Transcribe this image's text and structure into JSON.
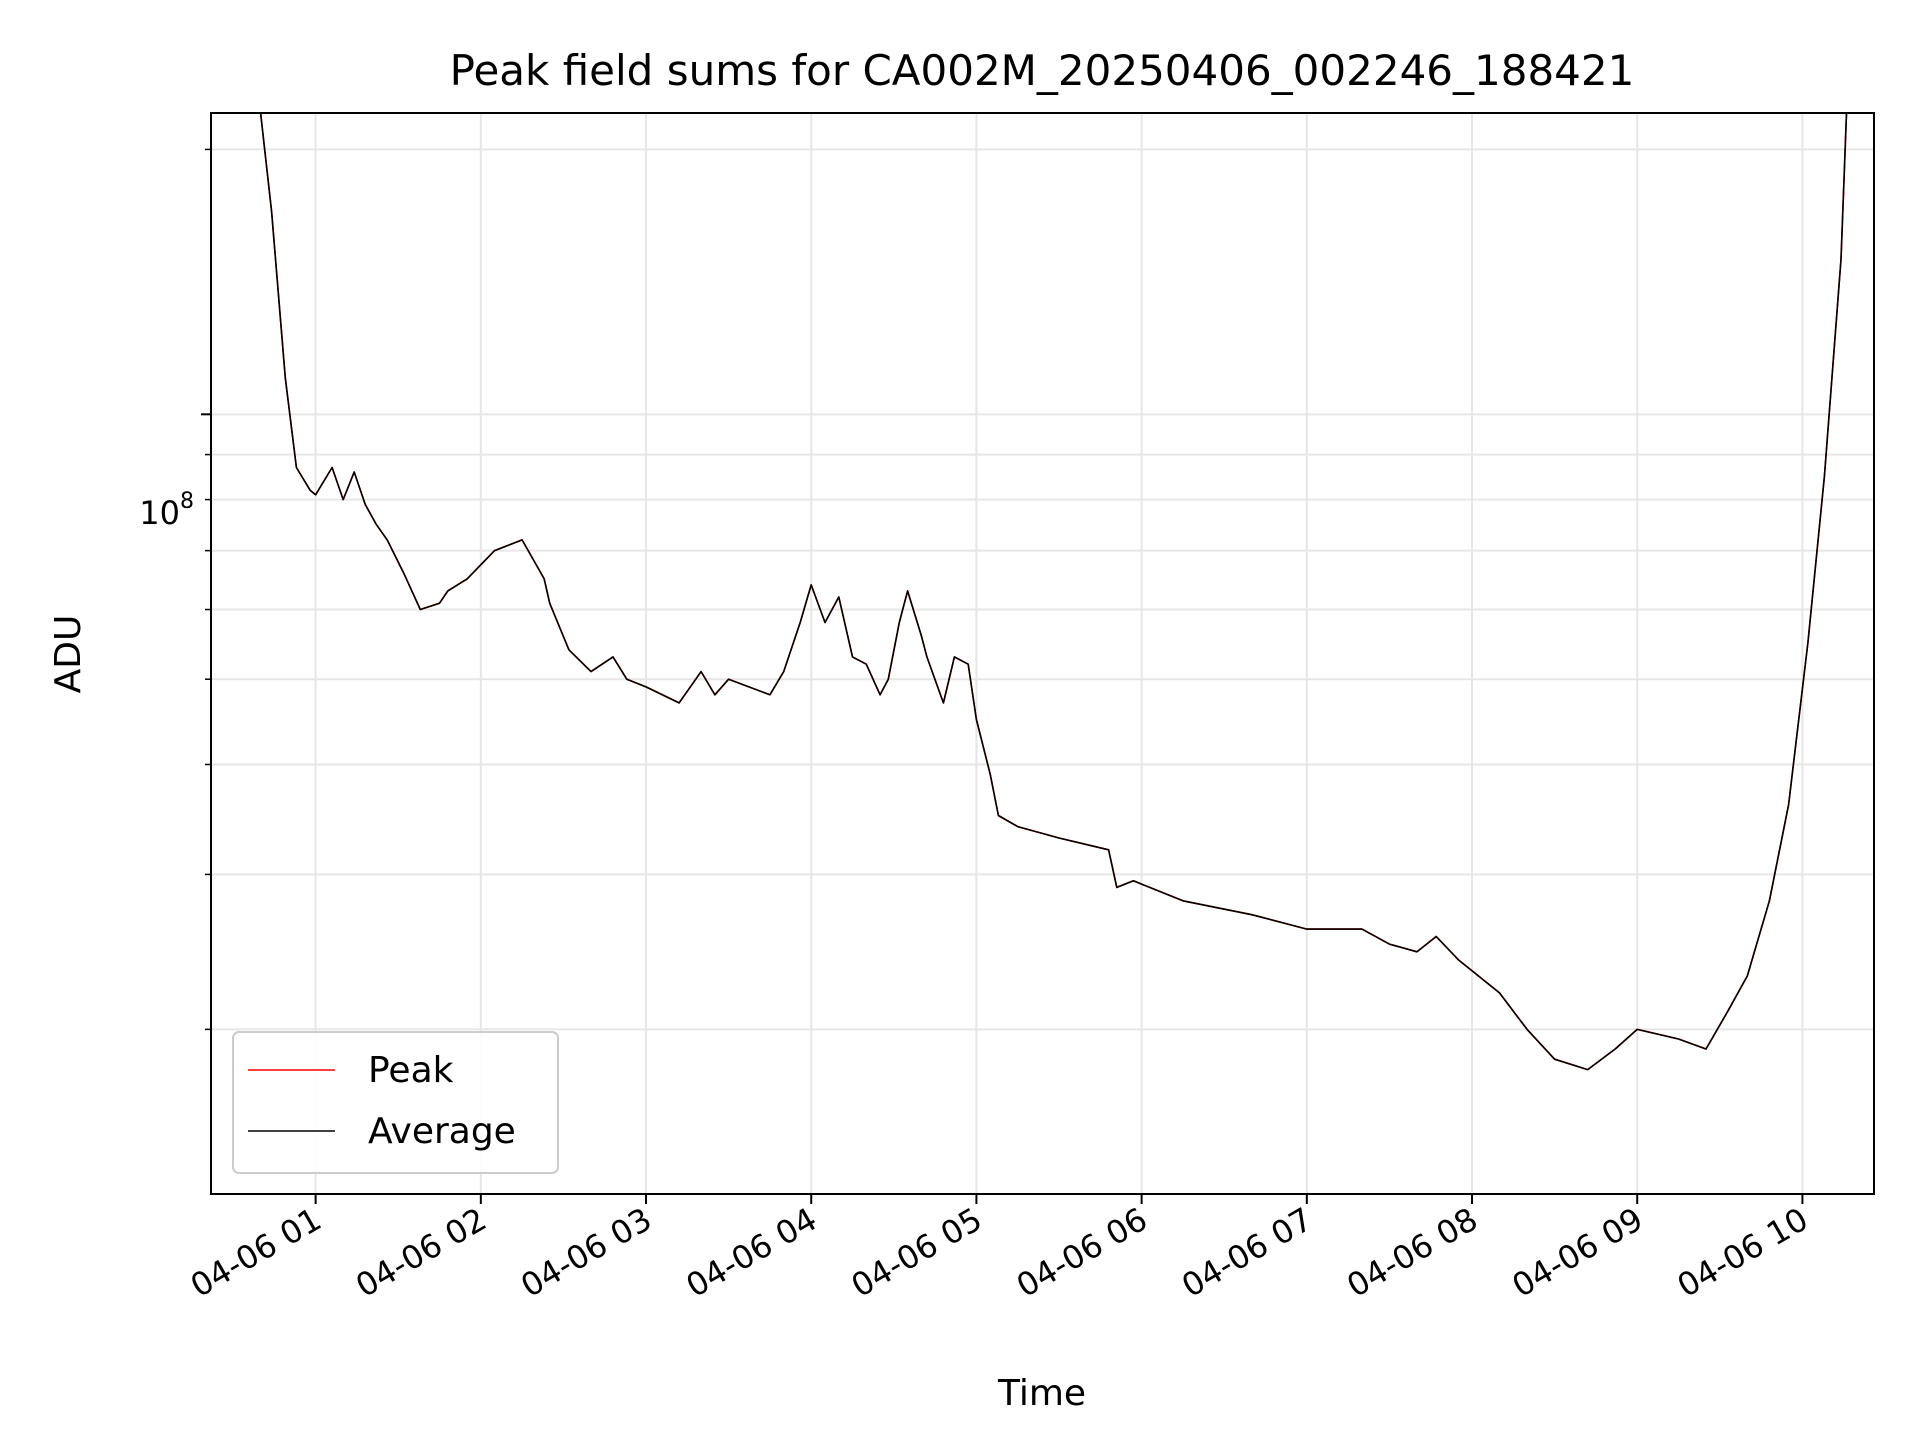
{
  "chart_data": {
    "type": "line",
    "title": "Peak field sums for CA002M_20250406_002246_188421",
    "xlabel": "Time",
    "ylabel": "ADU",
    "yscale": "log",
    "ytick_labels": [
      {
        "value": 100000000,
        "base": "10",
        "exp": "8"
      }
    ],
    "xlim": [
      "2025-04-06 00:22",
      "2025-04-06 10:26"
    ],
    "ylim": [
      13000000,
      220000000
    ],
    "x_ticks": [
      "2025-04-06 01:00",
      "2025-04-06 02:00",
      "2025-04-06 03:00",
      "2025-04-06 04:00",
      "2025-04-06 05:00",
      "2025-04-06 06:00",
      "2025-04-06 07:00",
      "2025-04-06 08:00",
      "2025-04-06 09:00",
      "2025-04-06 10:00"
    ],
    "x_tick_labels": [
      "04-06 01",
      "04-06 02",
      "04-06 03",
      "04-06 04",
      "04-06 05",
      "04-06 06",
      "04-06 07",
      "04-06 08",
      "04-06 09",
      "04-06 10"
    ],
    "grid": true,
    "legend": {
      "location": "lower-left"
    },
    "series": [
      {
        "name": "Peak",
        "color": "#ff0000",
        "x": [
          "2025-04-06 00:40",
          "2025-04-06 00:44",
          "2025-04-06 00:49",
          "2025-04-06 00:53",
          "2025-04-06 00:58",
          "2025-04-06 01:00",
          "2025-04-06 01:06",
          "2025-04-06 01:10",
          "2025-04-06 01:14",
          "2025-04-06 01:18",
          "2025-04-06 01:22",
          "2025-04-06 01:26",
          "2025-04-06 01:32",
          "2025-04-06 01:38",
          "2025-04-06 01:45",
          "2025-04-06 01:48",
          "2025-04-06 01:55",
          "2025-04-06 02:05",
          "2025-04-06 02:15",
          "2025-04-06 02:23",
          "2025-04-06 02:25",
          "2025-04-06 02:32",
          "2025-04-06 02:40",
          "2025-04-06 02:48",
          "2025-04-06 02:53",
          "2025-04-06 03:00",
          "2025-04-06 03:12",
          "2025-04-06 03:20",
          "2025-04-06 03:25",
          "2025-04-06 03:30",
          "2025-04-06 03:45",
          "2025-04-06 03:50",
          "2025-04-06 03:56",
          "2025-04-06 04:00",
          "2025-04-06 04:05",
          "2025-04-06 04:10",
          "2025-04-06 04:15",
          "2025-04-06 04:20",
          "2025-04-06 04:25",
          "2025-04-06 04:28",
          "2025-04-06 04:32",
          "2025-04-06 04:35",
          "2025-04-06 04:40",
          "2025-04-06 04:42",
          "2025-04-06 04:48",
          "2025-04-06 04:52",
          "2025-04-06 04:57",
          "2025-04-06 05:00",
          "2025-04-06 05:05",
          "2025-04-06 05:08",
          "2025-04-06 05:15",
          "2025-04-06 05:30",
          "2025-04-06 05:48",
          "2025-04-06 05:51",
          "2025-04-06 05:57",
          "2025-04-06 06:15",
          "2025-04-06 06:40",
          "2025-04-06 07:00",
          "2025-04-06 07:20",
          "2025-04-06 07:30",
          "2025-04-06 07:40",
          "2025-04-06 07:47",
          "2025-04-06 07:55",
          "2025-04-06 08:10",
          "2025-04-06 08:20",
          "2025-04-06 08:30",
          "2025-04-06 08:42",
          "2025-04-06 08:52",
          "2025-04-06 09:00",
          "2025-04-06 09:15",
          "2025-04-06 09:25",
          "2025-04-06 09:33",
          "2025-04-06 09:40",
          "2025-04-06 09:48",
          "2025-04-06 09:55",
          "2025-04-06 10:02",
          "2025-04-06 10:08",
          "2025-04-06 10:14",
          "2025-04-06 10:16"
        ],
        "values": [
          220000000,
          170000000,
          110000000,
          87000000,
          82000000,
          81000000,
          87000000,
          80000000,
          86000000,
          79000000,
          75000000,
          72000000,
          66000000,
          60000000,
          61000000,
          63000000,
          65000000,
          70000000,
          72000000,
          65000000,
          61000000,
          54000000,
          51000000,
          53000000,
          50000000,
          49000000,
          47000000,
          51000000,
          48000000,
          50000000,
          48000000,
          51000000,
          58000000,
          64000000,
          58000000,
          62000000,
          53000000,
          52000000,
          48000000,
          50000000,
          58000000,
          63000000,
          56000000,
          53000000,
          47000000,
          53000000,
          52000000,
          45000000,
          39000000,
          35000000,
          34000000,
          33000000,
          32000000,
          29000000,
          29500000,
          28000000,
          27000000,
          26000000,
          26000000,
          25000000,
          24500000,
          25500000,
          24000000,
          22000000,
          20000000,
          18500000,
          18000000,
          19000000,
          20000000,
          19500000,
          19000000,
          21000000,
          23000000,
          28000000,
          36000000,
          55000000,
          85000000,
          150000000,
          220000000
        ]
      },
      {
        "name": "Average",
        "color": "#000000",
        "x": [
          "2025-04-06 00:40",
          "2025-04-06 00:44",
          "2025-04-06 00:49",
          "2025-04-06 00:53",
          "2025-04-06 00:58",
          "2025-04-06 01:00",
          "2025-04-06 01:06",
          "2025-04-06 01:10",
          "2025-04-06 01:14",
          "2025-04-06 01:18",
          "2025-04-06 01:22",
          "2025-04-06 01:26",
          "2025-04-06 01:32",
          "2025-04-06 01:38",
          "2025-04-06 01:45",
          "2025-04-06 01:48",
          "2025-04-06 01:55",
          "2025-04-06 02:05",
          "2025-04-06 02:15",
          "2025-04-06 02:23",
          "2025-04-06 02:25",
          "2025-04-06 02:32",
          "2025-04-06 02:40",
          "2025-04-06 02:48",
          "2025-04-06 02:53",
          "2025-04-06 03:00",
          "2025-04-06 03:12",
          "2025-04-06 03:20",
          "2025-04-06 03:25",
          "2025-04-06 03:30",
          "2025-04-06 03:45",
          "2025-04-06 03:50",
          "2025-04-06 03:56",
          "2025-04-06 04:00",
          "2025-04-06 04:05",
          "2025-04-06 04:10",
          "2025-04-06 04:15",
          "2025-04-06 04:20",
          "2025-04-06 04:25",
          "2025-04-06 04:28",
          "2025-04-06 04:32",
          "2025-04-06 04:35",
          "2025-04-06 04:40",
          "2025-04-06 04:42",
          "2025-04-06 04:48",
          "2025-04-06 04:52",
          "2025-04-06 04:57",
          "2025-04-06 05:00",
          "2025-04-06 05:05",
          "2025-04-06 05:08",
          "2025-04-06 05:15",
          "2025-04-06 05:30",
          "2025-04-06 05:48",
          "2025-04-06 05:51",
          "2025-04-06 05:57",
          "2025-04-06 06:15",
          "2025-04-06 06:40",
          "2025-04-06 07:00",
          "2025-04-06 07:20",
          "2025-04-06 07:30",
          "2025-04-06 07:40",
          "2025-04-06 07:47",
          "2025-04-06 07:55",
          "2025-04-06 08:10",
          "2025-04-06 08:20",
          "2025-04-06 08:30",
          "2025-04-06 08:42",
          "2025-04-06 08:52",
          "2025-04-06 09:00",
          "2025-04-06 09:15",
          "2025-04-06 09:25",
          "2025-04-06 09:33",
          "2025-04-06 09:40",
          "2025-04-06 09:48",
          "2025-04-06 09:55",
          "2025-04-06 10:02",
          "2025-04-06 10:08",
          "2025-04-06 10:14",
          "2025-04-06 10:16"
        ],
        "values": [
          220000000,
          170000000,
          110000000,
          87000000,
          82000000,
          81000000,
          87000000,
          80000000,
          86000000,
          79000000,
          75000000,
          72000000,
          66000000,
          60000000,
          61000000,
          63000000,
          65000000,
          70000000,
          72000000,
          65000000,
          61000000,
          54000000,
          51000000,
          53000000,
          50000000,
          49000000,
          47000000,
          51000000,
          48000000,
          50000000,
          48000000,
          51000000,
          58000000,
          64000000,
          58000000,
          62000000,
          53000000,
          52000000,
          48000000,
          50000000,
          58000000,
          63000000,
          56000000,
          53000000,
          47000000,
          53000000,
          52000000,
          45000000,
          39000000,
          35000000,
          34000000,
          33000000,
          32000000,
          29000000,
          29500000,
          28000000,
          27000000,
          26000000,
          26000000,
          25000000,
          24500000,
          25500000,
          24000000,
          22000000,
          20000000,
          18500000,
          18000000,
          19000000,
          20000000,
          19500000,
          19000000,
          21000000,
          23000000,
          28000000,
          36000000,
          55000000,
          85000000,
          150000000,
          220000000
        ]
      }
    ]
  }
}
